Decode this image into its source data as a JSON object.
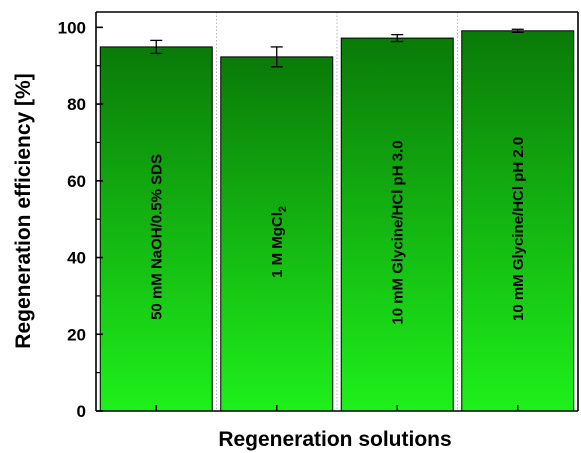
{
  "chart_data": {
    "type": "bar",
    "title": "",
    "xlabel": "Regeneration solutions",
    "ylabel": "Regeneration efficiency [%]",
    "ylim": [
      0,
      104
    ],
    "yticks": [
      0,
      20,
      40,
      60,
      80,
      100
    ],
    "grid": "vertical dotted separators between bars",
    "categories": [
      "50 mM NaOH/0.5% SDS",
      "1 M MgCl2",
      "10 mM Glycine/HCl pH 3.0",
      "10 mM Glycine/HCl pH 2.0"
    ],
    "category_labels": [
      {
        "main": "50 mM NaOH/0.5% SDS",
        "sub": ""
      },
      {
        "main": "1 M MgCl",
        "sub": "2"
      },
      {
        "main": "10 mM Glycine/HCl pH 3.0",
        "sub": ""
      },
      {
        "main": "10 mM Glycine/HCl pH 2.0",
        "sub": ""
      }
    ],
    "values": [
      94.9,
      92.3,
      97.2,
      99.1
    ],
    "errors": [
      1.7,
      2.6,
      0.9,
      0.4
    ],
    "colors": {
      "bar_top": "#0a7a08",
      "bar_bottom": "#1ef01b",
      "bar_edge": "#000000",
      "error_bar": "#000000",
      "separator": "#b4b4b4"
    }
  }
}
